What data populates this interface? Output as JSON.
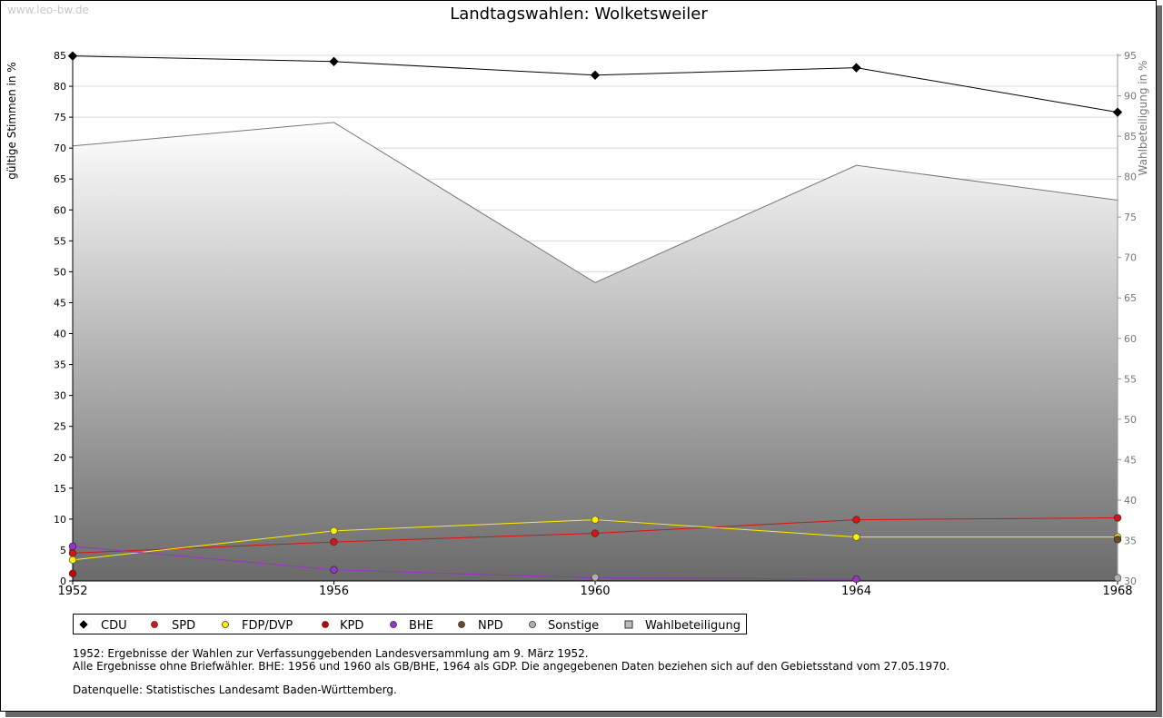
{
  "watermark": "www.leo-bw.de",
  "notes": {
    "line1": "1952: Ergebnisse der Wahlen zur Verfassunggebenden Landesversammlung am 9. März 1952.",
    "line2": "Alle Ergebnisse ohne Briefwähler. BHE: 1956 und 1960 als GB/BHE, 1964 als GDP. Die angegebenen Daten beziehen sich auf den Gebietsstand vom 27.05.1970.",
    "line3": "Datenquelle: Statistisches Landesamt Baden-Württemberg."
  },
  "colors": {
    "CDU": "#000000",
    "SPD": "#dd1111",
    "FDP/DVP": "#ffee00",
    "KPD": "#cc0000",
    "BHE": "#9933cc",
    "NPD": "#6b4a2a",
    "Sonstige": "#b0b0b0",
    "Wahlbeteiligung": "#777777"
  },
  "chart_data": {
    "type": "line",
    "title": "Landtagswahlen: Wolketsweiler",
    "xlabel": "",
    "ylabel": "gültige Stimmen in %",
    "y2label": "Wahlbeteiligung in %",
    "x": [
      "1952",
      "1956",
      "1960",
      "1964",
      "1968"
    ],
    "ylim": [
      0,
      85
    ],
    "yticks": [
      0,
      5,
      10,
      15,
      20,
      25,
      30,
      35,
      40,
      45,
      50,
      55,
      60,
      65,
      70,
      75,
      80,
      85
    ],
    "y2lim": [
      30,
      95
    ],
    "y2ticks": [
      30,
      35,
      40,
      45,
      50,
      55,
      60,
      65,
      70,
      75,
      80,
      85,
      90,
      95
    ],
    "series": [
      {
        "name": "CDU",
        "values": [
          84.9,
          84.0,
          81.8,
          83.0,
          75.8
        ]
      },
      {
        "name": "SPD",
        "values": [
          4.5,
          6.3,
          7.7,
          9.9,
          10.2
        ]
      },
      {
        "name": "FDP/DVP",
        "values": [
          3.4,
          8.1,
          9.9,
          7.1,
          7.1
        ]
      },
      {
        "name": "KPD",
        "values": [
          1.2,
          null,
          null,
          null,
          null
        ]
      },
      {
        "name": "BHE",
        "values": [
          5.6,
          1.8,
          0.5,
          0.3,
          null
        ]
      },
      {
        "name": "NPD",
        "values": [
          null,
          null,
          null,
          null,
          6.7
        ]
      },
      {
        "name": "Sonstige",
        "values": [
          null,
          null,
          0.6,
          null,
          0.5
        ]
      }
    ],
    "turnout": {
      "name": "Wahlbeteiligung",
      "values": [
        83.8,
        86.7,
        66.9,
        81.4,
        77.1
      ]
    },
    "legend": [
      "CDU",
      "SPD",
      "FDP/DVP",
      "KPD",
      "BHE",
      "NPD",
      "Sonstige",
      "Wahlbeteiligung"
    ],
    "legend_position": "bottom-left",
    "grid": true
  }
}
